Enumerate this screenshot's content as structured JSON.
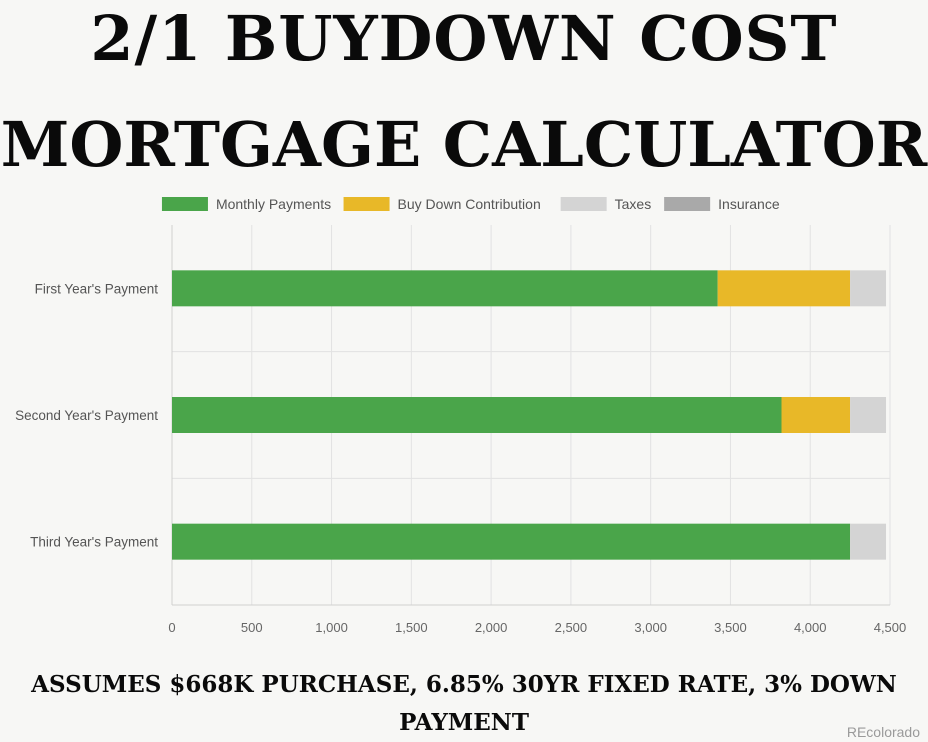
{
  "title_line1": "2/1 BUYDOWN COST",
  "title_line2": "MORTGAGE CALCULATOR",
  "footnote_line1": "ASSUMES $668K PURCHASE, 6.85% 30YR FIXED RATE, 3% DOWN",
  "footnote_line2": "PAYMENT",
  "watermark": "REcolorado",
  "chart_data": {
    "type": "bar",
    "orientation": "horizontal",
    "stacked": true,
    "categories": [
      "First Year's Payment",
      "Second Year's Payment",
      "Third Year's Payment"
    ],
    "series": [
      {
        "name": "Monthly Payments",
        "color": "#4aa54a",
        "values": [
          3420,
          3820,
          4250
        ]
      },
      {
        "name": "Buy Down Contribution",
        "color": "#e8b828",
        "values": [
          830,
          430,
          0
        ]
      },
      {
        "name": "Taxes",
        "color": "#d4d4d4",
        "values": [
          225,
          225,
          225
        ]
      },
      {
        "name": "Insurance",
        "color": "#a9a9a9",
        "values": [
          0,
          0,
          0
        ]
      }
    ],
    "xlim": [
      0,
      4500
    ],
    "xticks": [
      "0",
      "500",
      "1,000",
      "1,500",
      "2,000",
      "2,500",
      "3,000",
      "3,500",
      "4,000",
      "4,500"
    ],
    "legend_position": "top",
    "grid": true
  }
}
